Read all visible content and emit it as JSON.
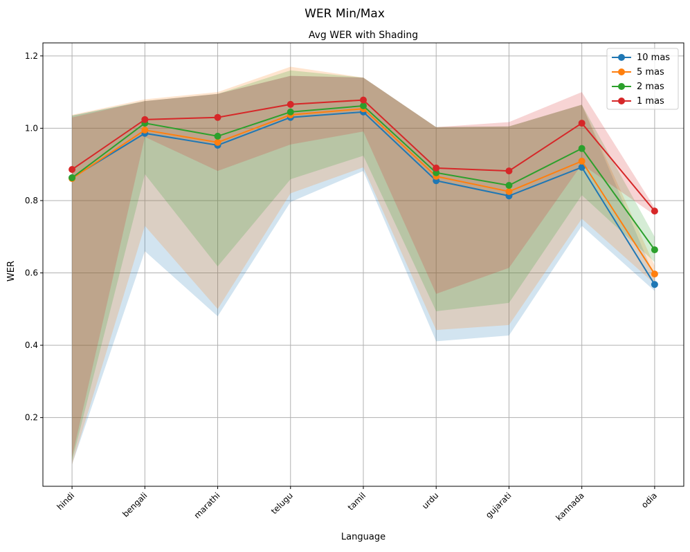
{
  "chart_data": {
    "type": "line",
    "suptitle": "WER Min/Max",
    "title": "Avg WER with Shading",
    "xlabel": "Language",
    "ylabel": "WER",
    "categories": [
      "hindi",
      "bengali",
      "marathi",
      "telugu",
      "tamil",
      "urdu",
      "gujarati",
      "kannada",
      "odia"
    ],
    "ylim": [
      0.01,
      1.236
    ],
    "yticks": [
      0.2,
      0.4,
      0.6,
      0.8,
      1.0,
      1.2
    ],
    "grid": true,
    "legend_position": "top-right",
    "series": [
      {
        "name": "10 mas",
        "color": "#1f77b4",
        "values": [
          0.863,
          0.986,
          0.953,
          1.03,
          1.045,
          0.855,
          0.813,
          0.892,
          0.568
        ],
        "min": [
          0.07,
          0.66,
          0.48,
          0.796,
          0.882,
          0.411,
          0.427,
          0.73,
          0.55
        ],
        "max": [
          1.035,
          1.075,
          1.095,
          1.145,
          1.14,
          1.003,
          1.005,
          1.065,
          0.59
        ]
      },
      {
        "name": "5 mas",
        "color": "#ff7f0e",
        "values": [
          0.861,
          0.995,
          0.961,
          1.037,
          1.054,
          0.867,
          0.825,
          0.909,
          0.597
        ],
        "min": [
          0.07,
          0.73,
          0.5,
          0.82,
          0.892,
          0.442,
          0.456,
          0.75,
          0.57
        ],
        "max": [
          1.037,
          1.08,
          1.1,
          1.17,
          1.14,
          1.003,
          1.005,
          1.065,
          0.62
        ]
      },
      {
        "name": "2 mas",
        "color": "#2ca02c",
        "values": [
          0.863,
          1.014,
          0.978,
          1.045,
          1.062,
          0.877,
          0.842,
          0.944,
          0.664
        ],
        "min": [
          0.08,
          0.873,
          0.618,
          0.859,
          0.924,
          0.494,
          0.517,
          0.815,
          0.63
        ],
        "max": [
          1.035,
          1.075,
          1.095,
          1.16,
          1.14,
          1.003,
          1.005,
          1.065,
          0.7
        ]
      },
      {
        "name": "1 mas",
        "color": "#d62728",
        "values": [
          0.886,
          1.024,
          1.03,
          1.066,
          1.078,
          0.89,
          0.882,
          1.014,
          0.771
        ],
        "min": [
          0.09,
          0.976,
          0.882,
          0.955,
          0.991,
          0.542,
          0.614,
          0.9,
          0.76
        ],
        "max": [
          1.03,
          1.075,
          1.095,
          1.145,
          1.14,
          1.003,
          1.017,
          1.1,
          0.78
        ]
      }
    ]
  }
}
